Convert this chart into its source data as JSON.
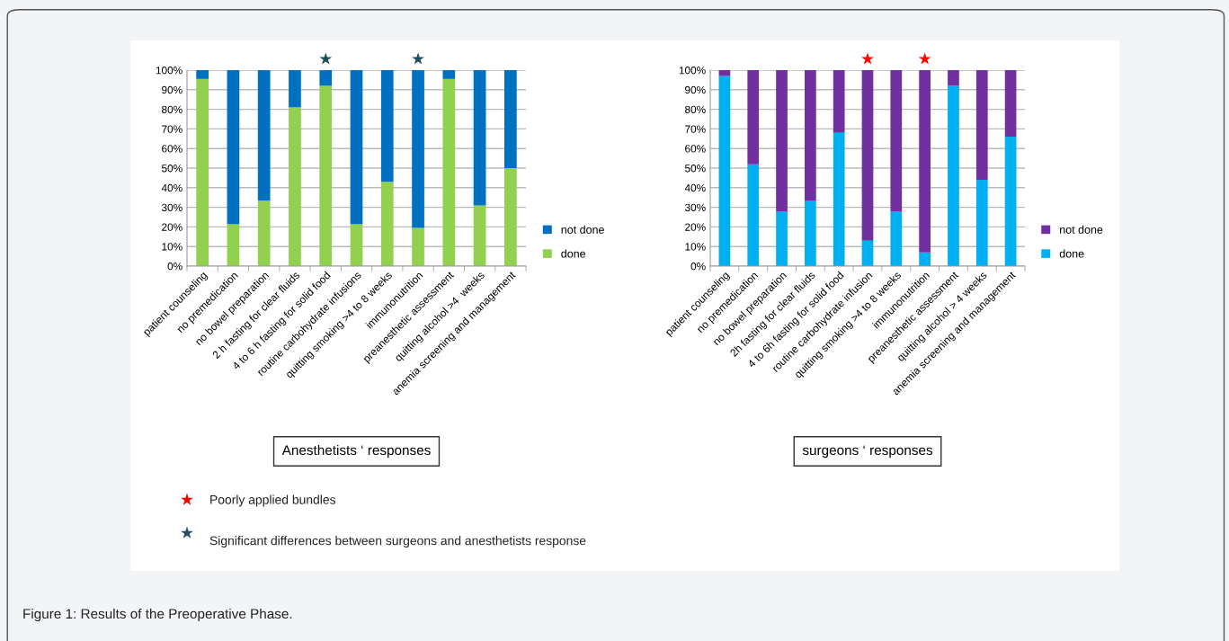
{
  "chart_data": [
    {
      "type": "bar",
      "title": "Anesthetists ‘ responses",
      "stacked": true,
      "legend": "right",
      "grid": "y",
      "categories": [
        "patient counseling",
        "no premedication",
        "no bowel preparation",
        "2 h fasting for clear fluids",
        "4 to 6 h fasting for solid food",
        "routine carbohydrate infusions",
        "quitting smoking >4 to 8 weeks",
        "immunonutrition",
        "preanesthetic assessment",
        "quitting alcohol >4  weeks",
        "anemia screening and management"
      ],
      "series": [
        {
          "name": "done",
          "color": "#92d050",
          "values": [
            95.5,
            21.5,
            33.5,
            81,
            92,
            21.5,
            43,
            19.5,
            95.5,
            31,
            50
          ]
        },
        {
          "name": "not done",
          "color": "#0070c0",
          "values": [
            4.5,
            78.5,
            66.5,
            19,
            8,
            78.5,
            57,
            80.5,
            4.5,
            69,
            50
          ]
        }
      ],
      "ylim": [
        0,
        100
      ],
      "yticks": [
        {
          "value": 0,
          "label": "0%"
        },
        {
          "value": 10,
          "label": "10%"
        },
        {
          "value": 20,
          "label": "20%"
        },
        {
          "value": 30,
          "label": "30%"
        },
        {
          "value": 40,
          "label": "40%"
        },
        {
          "value": 50,
          "label": "50%"
        },
        {
          "value": 60,
          "label": "60%"
        },
        {
          "value": 70,
          "label": "70%"
        },
        {
          "value": 80,
          "label": "80%"
        },
        {
          "value": 90,
          "label": "90%"
        },
        {
          "value": 100,
          "label": "100%"
        }
      ],
      "annotations": [
        {
          "text": "★",
          "x": "4 to 6 h fasting for solid food",
          "y": 100
        },
        {
          "text": "★",
          "x": "immunonutrition",
          "y": 100
        },
        "Poorly applied bundles",
        "Significant differences between surgeons and anesthetists response",
        "Figure 1: Results of the Preoperative Phase."
      ]
    },
    {
      "type": "bar",
      "title": "surgeons ‘ responses",
      "stacked": true,
      "legend": "right",
      "grid": "y",
      "categories": [
        "patient counseling",
        "no premedication",
        "no bowel preparation",
        "2h fasting for clear fluids",
        "4 to 6h fasting for solid food",
        "routine carbohydrate infusion",
        "quitting smoking >4 to 8 weeks",
        "immunonutrition",
        "preanesthetic assessment",
        "quitting alcohol > 4 weeks",
        "anemia screening and management"
      ],
      "series": [
        {
          "name": "done",
          "color": "#00b0f0",
          "values": [
            97,
            52,
            28,
            33.5,
            68,
            13,
            28,
            7,
            92,
            44,
            66
          ]
        },
        {
          "name": "not done",
          "color": "#7030a0",
          "values": [
            3,
            48,
            72,
            66.5,
            32,
            87,
            72,
            93,
            8,
            56,
            34
          ]
        }
      ],
      "ylim": [
        0,
        100
      ],
      "yticks": [
        {
          "value": 0,
          "label": "0%"
        },
        {
          "value": 10,
          "label": "10%"
        },
        {
          "value": 20,
          "label": "20%"
        },
        {
          "value": 30,
          "label": "30%"
        },
        {
          "value": 40,
          "label": "40%"
        },
        {
          "value": 50,
          "label": "50%"
        },
        {
          "value": 60,
          "label": "60%"
        },
        {
          "value": 70,
          "label": "70%"
        },
        {
          "value": 80,
          "label": "80%"
        },
        {
          "value": 90,
          "label": "90%"
        },
        {
          "value": 100,
          "label": "100%"
        }
      ],
      "annotations": [
        {
          "text": "★",
          "x": "routine carbohydrate infusion",
          "y": 100
        },
        {
          "text": "★",
          "x": "immunonutrition",
          "y": 100
        }
      ]
    }
  ]
}
